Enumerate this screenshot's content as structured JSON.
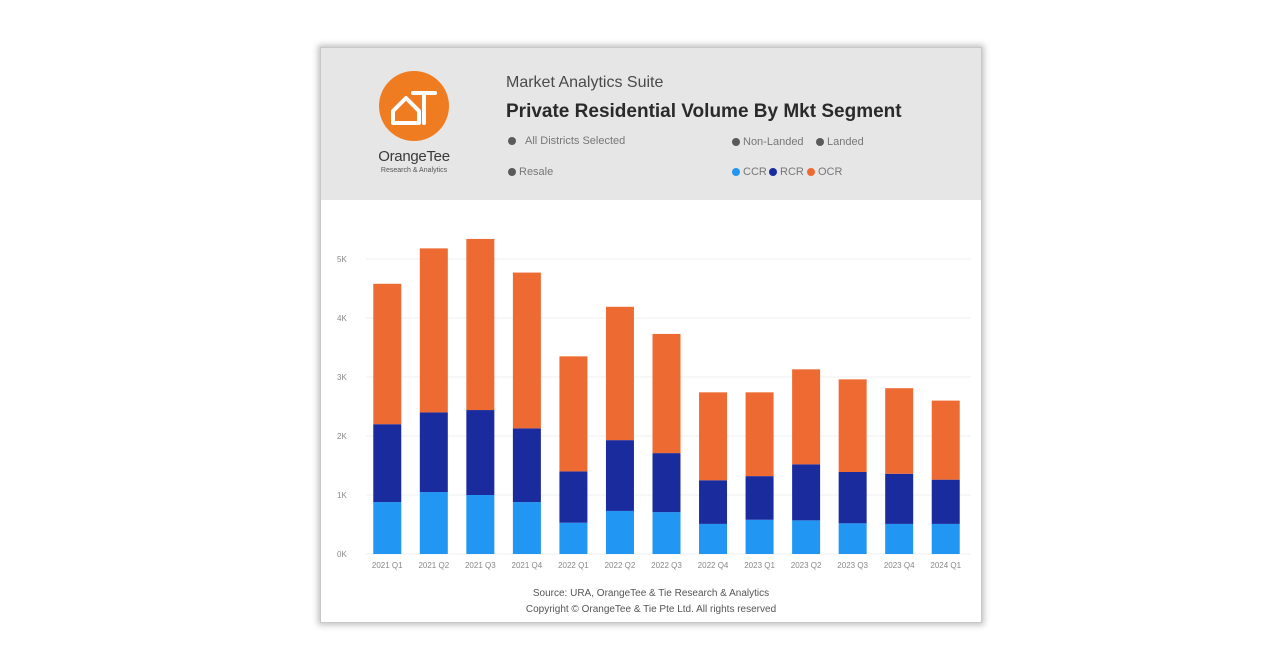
{
  "brand": {
    "logo_mark": "OT",
    "name": "OrangeTee",
    "sub": "Research & Analytics",
    "orange": "#f07c22"
  },
  "header": {
    "suite": "Market Analytics Suite",
    "title": "Private Residential Volume By Mkt Segment",
    "filters": {
      "districts": "All Districts Selected",
      "non_landed": "Non-Landed",
      "landed": "Landed",
      "resale": "Resale",
      "ccr": "CCR",
      "rcr": "RCR",
      "ocr": "OCR"
    }
  },
  "footer": {
    "source": "Source: URA, OrangeTee & Tie Research & Analytics",
    "copyright": "Copyright © OrangeTee & Tie Pte Ltd. All rights reserved"
  },
  "chart_data": {
    "type": "bar",
    "stacked": true,
    "categories": [
      "2021 Q1",
      "2021 Q2",
      "2021 Q3",
      "2021 Q4",
      "2022 Q1",
      "2022 Q2",
      "2022 Q3",
      "2022 Q4",
      "2023 Q1",
      "2023 Q2",
      "2023 Q3",
      "2023 Q4",
      "2024 Q1"
    ],
    "series": [
      {
        "name": "CCR",
        "color": "#2196f3",
        "values": [
          880,
          1050,
          1000,
          880,
          530,
          730,
          710,
          510,
          580,
          570,
          520,
          510,
          510
        ]
      },
      {
        "name": "RCR",
        "color": "#1a2b9e",
        "values": [
          1320,
          1350,
          1440,
          1250,
          870,
          1200,
          1000,
          740,
          740,
          950,
          870,
          850,
          750
        ]
      },
      {
        "name": "OCR",
        "color": "#ee6a33",
        "values": [
          2380,
          2780,
          2900,
          2640,
          1950,
          2260,
          2020,
          1490,
          1420,
          1610,
          1570,
          1450,
          1340
        ]
      }
    ],
    "yticks": [
      "0K",
      "1K",
      "2K",
      "3K",
      "4K",
      "5K"
    ],
    "ylim": [
      0,
      6000
    ],
    "title": "Private Residential Volume By Mkt Segment",
    "xlabel": "",
    "ylabel": "",
    "legend_position": "top"
  }
}
